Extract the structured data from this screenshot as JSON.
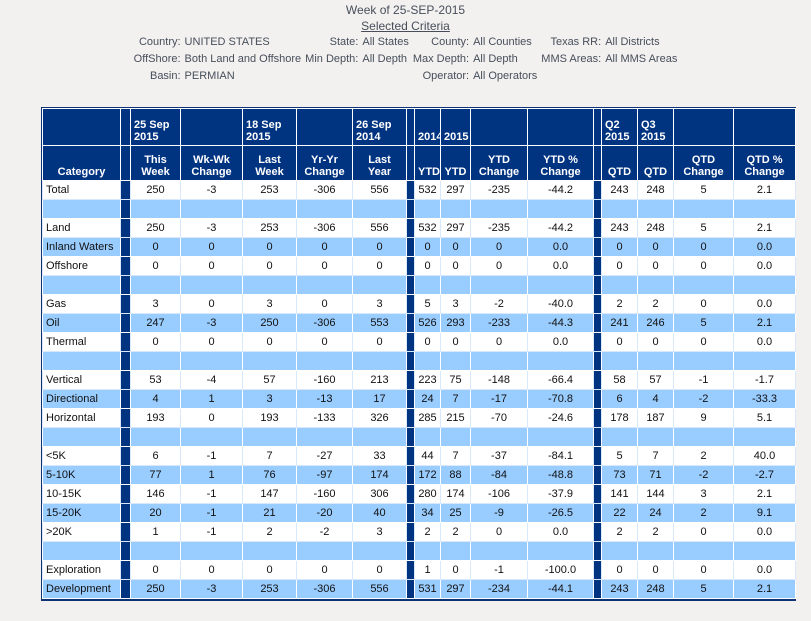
{
  "header": {
    "week_title": "Week of 25-SEP-2015",
    "criteria_link": "Selected Criteria"
  },
  "criteria": {
    "rows": [
      [
        {
          "label": "Country:",
          "value": "UNITED STATES"
        },
        {
          "label": "State:",
          "value": "All States"
        },
        {
          "label": "County:",
          "value": "All Counties"
        },
        {
          "label": "Texas RR:",
          "value": "All Districts"
        }
      ],
      [
        {
          "label": "OffShore:",
          "value": "Both Land and Offshore"
        },
        {
          "label": "Min Depth:",
          "value": "All Depth"
        },
        {
          "label": "Max Depth:",
          "value": "All Depth"
        },
        {
          "label": "MMS Areas:",
          "value": "All MMS Areas"
        }
      ],
      [
        {
          "label": "Basin:",
          "value": "PERMIAN"
        },
        {
          "label": "",
          "value": ""
        },
        {
          "label": "Operator:",
          "value": "All Operators"
        },
        {
          "label": "",
          "value": ""
        }
      ]
    ]
  },
  "table": {
    "header_row1": [
      "",
      "25 Sep 2015",
      "",
      "18 Sep 2015",
      "",
      "26 Sep 2014",
      "2014",
      "2015",
      "",
      "",
      "Q2 2015",
      "Q3 2015",
      "",
      ""
    ],
    "header_row2": [
      "Category",
      "This Week",
      "Wk-Wk Change",
      "Last Week",
      "Yr-Yr Change",
      "Last Year",
      "YTD",
      "YTD",
      "YTD Change",
      "YTD % Change",
      "QTD",
      "QTD",
      "QTD Change",
      "QTD % Change"
    ],
    "rows": [
      {
        "category": "Total",
        "values": [
          "250",
          "-3",
          "253",
          "-306",
          "556",
          "532",
          "297",
          "-235",
          "-44.2",
          "243",
          "248",
          "5",
          "2.1"
        ]
      },
      {
        "spacer": true
      },
      {
        "category": "Land",
        "values": [
          "250",
          "-3",
          "253",
          "-306",
          "556",
          "532",
          "297",
          "-235",
          "-44.2",
          "243",
          "248",
          "5",
          "2.1"
        ]
      },
      {
        "category": "Inland Waters",
        "values": [
          "0",
          "0",
          "0",
          "0",
          "0",
          "0",
          "0",
          "0",
          "0.0",
          "0",
          "0",
          "0",
          "0.0"
        ]
      },
      {
        "category": "Offshore",
        "values": [
          "0",
          "0",
          "0",
          "0",
          "0",
          "0",
          "0",
          "0",
          "0.0",
          "0",
          "0",
          "0",
          "0.0"
        ]
      },
      {
        "spacer": true
      },
      {
        "category": "Gas",
        "values": [
          "3",
          "0",
          "3",
          "0",
          "3",
          "5",
          "3",
          "-2",
          "-40.0",
          "2",
          "2",
          "0",
          "0.0"
        ]
      },
      {
        "category": "Oil",
        "values": [
          "247",
          "-3",
          "250",
          "-306",
          "553",
          "526",
          "293",
          "-233",
          "-44.3",
          "241",
          "246",
          "5",
          "2.1"
        ]
      },
      {
        "category": "Thermal",
        "values": [
          "0",
          "0",
          "0",
          "0",
          "0",
          "0",
          "0",
          "0",
          "0.0",
          "0",
          "0",
          "0",
          "0.0"
        ]
      },
      {
        "spacer": true
      },
      {
        "category": "Vertical",
        "values": [
          "53",
          "-4",
          "57",
          "-160",
          "213",
          "223",
          "75",
          "-148",
          "-66.4",
          "58",
          "57",
          "-1",
          "-1.7"
        ]
      },
      {
        "category": "Directional",
        "values": [
          "4",
          "1",
          "3",
          "-13",
          "17",
          "24",
          "7",
          "-17",
          "-70.8",
          "6",
          "4",
          "-2",
          "-33.3"
        ]
      },
      {
        "category": "Horizontal",
        "values": [
          "193",
          "0",
          "193",
          "-133",
          "326",
          "285",
          "215",
          "-70",
          "-24.6",
          "178",
          "187",
          "9",
          "5.1"
        ]
      },
      {
        "spacer": true
      },
      {
        "category": "<5K",
        "values": [
          "6",
          "-1",
          "7",
          "-27",
          "33",
          "44",
          "7",
          "-37",
          "-84.1",
          "5",
          "7",
          "2",
          "40.0"
        ]
      },
      {
        "category": "5-10K",
        "values": [
          "77",
          "1",
          "76",
          "-97",
          "174",
          "172",
          "88",
          "-84",
          "-48.8",
          "73",
          "71",
          "-2",
          "-2.7"
        ]
      },
      {
        "category": "10-15K",
        "values": [
          "146",
          "-1",
          "147",
          "-160",
          "306",
          "280",
          "174",
          "-106",
          "-37.9",
          "141",
          "144",
          "3",
          "2.1"
        ]
      },
      {
        "category": "15-20K",
        "values": [
          "20",
          "-1",
          "21",
          "-20",
          "40",
          "34",
          "25",
          "-9",
          "-26.5",
          "22",
          "24",
          "2",
          "9.1"
        ]
      },
      {
        "category": ">20K",
        "values": [
          "1",
          "-1",
          "2",
          "-2",
          "3",
          "2",
          "2",
          "0",
          "0.0",
          "2",
          "2",
          "0",
          "0.0"
        ]
      },
      {
        "spacer": true
      },
      {
        "category": "Exploration",
        "values": [
          "0",
          "0",
          "0",
          "0",
          "0",
          "1",
          "0",
          "-1",
          "-100.0",
          "0",
          "0",
          "0",
          "0.0"
        ]
      },
      {
        "category": "Development",
        "values": [
          "250",
          "-3",
          "253",
          "-306",
          "556",
          "531",
          "297",
          "-234",
          "-44.1",
          "243",
          "248",
          "5",
          "2.1"
        ]
      }
    ]
  },
  "colors": {
    "header_navy": "#003380",
    "row_light_blue": "#99CCFF",
    "row_white": "#FFFFFF",
    "text_muted": "#474E5A"
  }
}
